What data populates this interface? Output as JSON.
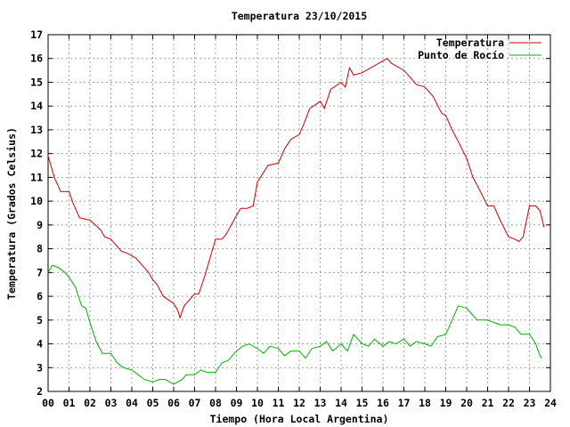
{
  "chart_data": {
    "type": "line",
    "title": "Temperatura 23/10/2015",
    "xlabel": "Tiempo (Hora Local Argentina)",
    "ylabel": "Temperatura (Grados Celsius)",
    "xlim": [
      0,
      24
    ],
    "ylim": [
      2,
      17
    ],
    "grid": true,
    "legend_position": "top-right",
    "x_ticks": [
      "00",
      "01",
      "02",
      "03",
      "04",
      "05",
      "06",
      "07",
      "08",
      "09",
      "10",
      "11",
      "12",
      "13",
      "14",
      "15",
      "16",
      "17",
      "18",
      "19",
      "20",
      "21",
      "22",
      "23",
      "24"
    ],
    "y_ticks": [
      "2",
      "3",
      "4",
      "5",
      "6",
      "7",
      "8",
      "9",
      "10",
      "11",
      "12",
      "13",
      "14",
      "15",
      "16",
      "17"
    ],
    "series": [
      {
        "name": "Temperatura",
        "color": "#cc0000",
        "x": [
          0,
          0.1,
          0.3,
          0.5,
          0.6,
          1.0,
          1.2,
          1.5,
          2.0,
          2.5,
          2.7,
          3.0,
          3.2,
          3.5,
          3.8,
          4.0,
          4.2,
          4.5,
          4.8,
          5.0,
          5.2,
          5.5,
          6.0,
          6.2,
          6.3,
          6.5,
          7.0,
          7.2,
          7.5,
          8.0,
          8.3,
          8.5,
          9.0,
          9.2,
          9.5,
          9.8,
          10.0,
          10.5,
          11.0,
          11.3,
          11.6,
          12.0,
          12.2,
          12.5,
          13.0,
          13.2,
          13.5,
          14.0,
          14.2,
          14.4,
          14.6,
          15.0,
          15.4,
          15.8,
          16.0,
          16.2,
          16.4,
          16.6,
          17.0,
          17.3,
          17.6,
          18.0,
          18.4,
          18.8,
          19.0,
          19.3,
          19.6,
          20.0,
          20.3,
          20.6,
          21.0,
          21.3,
          21.6,
          22.0,
          22.3,
          22.5,
          22.7,
          23.0,
          23.3,
          23.5,
          23.7
        ],
        "y": [
          11.9,
          11.6,
          11.0,
          10.6,
          10.4,
          10.4,
          9.9,
          9.3,
          9.2,
          8.8,
          8.5,
          8.4,
          8.2,
          7.9,
          7.8,
          7.7,
          7.6,
          7.3,
          7.0,
          6.7,
          6.5,
          6.0,
          5.7,
          5.4,
          5.1,
          5.6,
          6.1,
          6.1,
          6.9,
          8.4,
          8.4,
          8.6,
          9.4,
          9.7,
          9.7,
          9.8,
          10.8,
          11.5,
          11.6,
          12.2,
          12.6,
          12.8,
          13.2,
          13.9,
          14.2,
          13.9,
          14.7,
          15.0,
          14.8,
          15.6,
          15.3,
          15.4,
          15.6,
          15.8,
          15.9,
          16.0,
          15.8,
          15.7,
          15.5,
          15.2,
          14.9,
          14.8,
          14.4,
          13.7,
          13.6,
          13.0,
          12.5,
          11.8,
          11.0,
          10.5,
          9.8,
          9.8,
          9.2,
          8.5,
          8.4,
          8.3,
          8.5,
          9.8,
          9.8,
          9.6,
          8.9
        ]
      },
      {
        "name": "Punto de Rocío",
        "color": "#00b000",
        "x": [
          0,
          0.2,
          0.5,
          0.8,
          1.0,
          1.3,
          1.6,
          1.8,
          2.0,
          2.3,
          2.6,
          3.0,
          3.3,
          3.6,
          4.0,
          4.3,
          4.6,
          5.0,
          5.3,
          5.6,
          6.0,
          6.2,
          6.4,
          6.6,
          7.0,
          7.3,
          7.6,
          8.0,
          8.3,
          8.6,
          9.0,
          9.3,
          9.6,
          10.0,
          10.3,
          10.6,
          11.0,
          11.3,
          11.6,
          12.0,
          12.3,
          12.6,
          13.0,
          13.3,
          13.6,
          14.0,
          14.3,
          14.6,
          15.0,
          15.3,
          15.6,
          16.0,
          16.3,
          16.6,
          17.0,
          17.3,
          17.6,
          18.0,
          18.3,
          18.6,
          19.0,
          19.3,
          19.6,
          20.0,
          20.3,
          20.5,
          20.7,
          21.0,
          21.3,
          21.6,
          22.0,
          22.3,
          22.6,
          23.0,
          23.3,
          23.5,
          23.6
        ],
        "y": [
          7.0,
          7.3,
          7.2,
          7.0,
          6.8,
          6.4,
          5.6,
          5.5,
          4.9,
          4.1,
          3.6,
          3.6,
          3.2,
          3.0,
          2.9,
          2.7,
          2.5,
          2.4,
          2.5,
          2.5,
          2.3,
          2.4,
          2.5,
          2.7,
          2.7,
          2.9,
          2.8,
          2.8,
          3.2,
          3.3,
          3.7,
          3.9,
          4.0,
          3.8,
          3.6,
          3.9,
          3.8,
          3.5,
          3.7,
          3.7,
          3.4,
          3.8,
          3.9,
          4.1,
          3.7,
          4.0,
          3.7,
          4.4,
          4.0,
          3.9,
          4.2,
          3.9,
          4.1,
          4.0,
          4.2,
          3.9,
          4.1,
          4.0,
          3.9,
          4.3,
          4.4,
          5.0,
          5.6,
          5.5,
          5.2,
          5.0,
          5.0,
          5.0,
          4.9,
          4.8,
          4.8,
          4.7,
          4.4,
          4.4,
          4.0,
          3.5,
          3.4
        ]
      }
    ]
  }
}
